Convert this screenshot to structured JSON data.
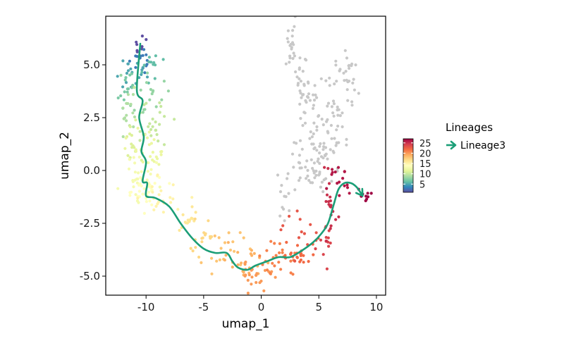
{
  "chart_data": {
    "type": "scatter",
    "xlabel": "umap_1",
    "ylabel": "umap_2",
    "xlim": [
      -13.5,
      10.8
    ],
    "ylim": [
      -5.9,
      7.3
    ],
    "x_ticks": [
      "-10",
      "-5",
      "0",
      "5",
      "10"
    ],
    "x_tick_values": [
      -10,
      -5,
      0,
      5,
      10
    ],
    "y_ticks": [
      "-5.0",
      "-2.5",
      "0.0",
      "2.5",
      "5.0"
    ],
    "y_tick_values": [
      -5.0,
      -2.5,
      0.0,
      2.5,
      5.0
    ],
    "grid": false,
    "colorbar": {
      "ticks": [
        "5",
        "10",
        "15",
        "20",
        "25"
      ],
      "tick_values": [
        5,
        10,
        15,
        20,
        25
      ],
      "range": [
        1,
        27
      ],
      "palette": [
        "#5E4FA2",
        "#3288BD",
        "#66C2A5",
        "#ABDDA4",
        "#E6F598",
        "#FFFFBF",
        "#FEE08B",
        "#FDAE61",
        "#F46D43",
        "#D53E4F",
        "#9E0142"
      ]
    },
    "legend": {
      "title": "Lineages",
      "entries": [
        {
          "label": "Lineage3",
          "color": "#1B9E77"
        }
      ],
      "placement": "right"
    },
    "unassigned_color": "#C8C8C8",
    "lineage_curve": {
      "name": "Lineage3",
      "color": "#1B9E77",
      "x": [
        -10.5,
        -10.8,
        -10.3,
        -10.6,
        -10.2,
        -10.4,
        -10.0,
        -10.3,
        -9.9,
        -10.0,
        -9.2,
        -8.0,
        -7.0,
        -6.0,
        -5.0,
        -4.0,
        -3.0,
        -2.5,
        -2.0,
        -1.2,
        -0.5,
        0.5,
        1.5,
        2.5,
        3.5,
        4.5,
        5.2,
        5.8,
        6.3,
        6.7,
        7.2,
        7.8,
        8.3,
        8.8
      ],
      "y": [
        6.0,
        3.8,
        3.3,
        2.5,
        1.6,
        0.9,
        0.4,
        -0.5,
        -0.6,
        -1.2,
        -1.3,
        -1.7,
        -2.5,
        -3.2,
        -3.7,
        -3.9,
        -3.9,
        -4.3,
        -4.6,
        -4.7,
        -4.5,
        -4.3,
        -4.1,
        -4.1,
        -3.8,
        -3.4,
        -3.0,
        -2.5,
        -1.6,
        -0.9,
        -0.6,
        -0.6,
        -0.8,
        -1.2
      ]
    },
    "point_groups": [
      {
        "pt": 1,
        "x": -10.5,
        "y": 5.9,
        "sx": 0.25,
        "sy": 0.25,
        "n": 8
      },
      {
        "pt": 3,
        "x": -10.8,
        "y": 5.3,
        "sx": 0.45,
        "sy": 0.35,
        "n": 14
      },
      {
        "pt": 5,
        "x": -11.3,
        "y": 4.6,
        "sx": 0.6,
        "sy": 0.4,
        "n": 18
      },
      {
        "pt": 6,
        "x": -9.6,
        "y": 4.8,
        "sx": 0.55,
        "sy": 0.45,
        "n": 12
      },
      {
        "pt": 7,
        "x": -11.6,
        "y": 3.9,
        "sx": 0.4,
        "sy": 0.4,
        "n": 14
      },
      {
        "pt": 8,
        "x": -10.0,
        "y": 3.6,
        "sx": 0.8,
        "sy": 0.55,
        "n": 18
      },
      {
        "pt": 9,
        "x": -11.5,
        "y": 2.6,
        "sx": 0.35,
        "sy": 0.5,
        "n": 14
      },
      {
        "pt": 10,
        "x": -9.8,
        "y": 2.3,
        "sx": 1.0,
        "sy": 0.6,
        "n": 26
      },
      {
        "pt": 11,
        "x": -11.3,
        "y": 1.1,
        "sx": 0.35,
        "sy": 0.55,
        "n": 14
      },
      {
        "pt": 12,
        "x": -9.6,
        "y": 1.0,
        "sx": 0.9,
        "sy": 0.6,
        "n": 26
      },
      {
        "pt": 13,
        "x": -10.7,
        "y": -0.2,
        "sx": 0.7,
        "sy": 0.5,
        "n": 30
      },
      {
        "pt": 14,
        "x": -10.3,
        "y": -1.0,
        "sx": 0.8,
        "sy": 0.4,
        "n": 32
      },
      {
        "pt": 15,
        "x": -8.6,
        "y": -1.4,
        "sx": 1.0,
        "sy": 0.4,
        "n": 20
      },
      {
        "pt": 16,
        "x": -6.6,
        "y": -2.3,
        "sx": 0.7,
        "sy": 0.4,
        "n": 14
      },
      {
        "pt": 17,
        "x": -5.0,
        "y": -3.2,
        "sx": 0.8,
        "sy": 0.4,
        "n": 16
      },
      {
        "pt": 18,
        "x": -3.2,
        "y": -3.8,
        "sx": 0.9,
        "sy": 0.45,
        "n": 18
      },
      {
        "pt": 19,
        "x": -1.5,
        "y": -4.4,
        "sx": 0.8,
        "sy": 0.45,
        "n": 22
      },
      {
        "pt": 20,
        "x": -0.2,
        "y": -4.9,
        "sx": 0.8,
        "sy": 0.3,
        "n": 24
      },
      {
        "pt": 21,
        "x": 1.5,
        "y": -4.2,
        "sx": 0.9,
        "sy": 0.4,
        "n": 24
      },
      {
        "pt": 22,
        "x": 3.3,
        "y": -4.0,
        "sx": 0.8,
        "sy": 0.4,
        "n": 22
      },
      {
        "pt": 23,
        "x": 3.8,
        "y": -3.0,
        "sx": 0.9,
        "sy": 0.5,
        "n": 14
      },
      {
        "pt": 24,
        "x": 5.4,
        "y": -3.6,
        "sx": 0.4,
        "sy": 0.45,
        "n": 14
      },
      {
        "pt": 25,
        "x": 6.0,
        "y": -2.0,
        "sx": 0.35,
        "sy": 0.75,
        "n": 20
      },
      {
        "pt": 26,
        "x": 6.6,
        "y": -0.6,
        "sx": 0.5,
        "sy": 0.4,
        "n": 16
      },
      {
        "pt": 27,
        "x": 8.9,
        "y": -1.2,
        "sx": 0.45,
        "sy": 0.12,
        "n": 10
      }
    ],
    "grey_groups": [
      {
        "x": 2.6,
        "y": 5.8,
        "sx": 0.35,
        "sy": 0.5,
        "n": 18
      },
      {
        "x": 3.5,
        "y": 4.3,
        "sx": 0.55,
        "sy": 0.7,
        "n": 24
      },
      {
        "x": 4.4,
        "y": 2.5,
        "sx": 0.6,
        "sy": 0.9,
        "n": 34
      },
      {
        "x": 7.4,
        "y": 4.4,
        "sx": 0.5,
        "sy": 0.6,
        "n": 24
      },
      {
        "x": 6.6,
        "y": 2.6,
        "sx": 0.7,
        "sy": 0.9,
        "n": 34
      },
      {
        "x": 5.6,
        "y": 0.8,
        "sx": 0.7,
        "sy": 0.6,
        "n": 26
      },
      {
        "x": 3.7,
        "y": 0.5,
        "sx": 0.8,
        "sy": 0.7,
        "n": 22
      },
      {
        "x": 2.0,
        "y": -1.0,
        "sx": 0.4,
        "sy": 0.7,
        "n": 12
      },
      {
        "x": 5.1,
        "y": -0.3,
        "sx": 0.6,
        "sy": 0.5,
        "n": 16
      }
    ]
  }
}
